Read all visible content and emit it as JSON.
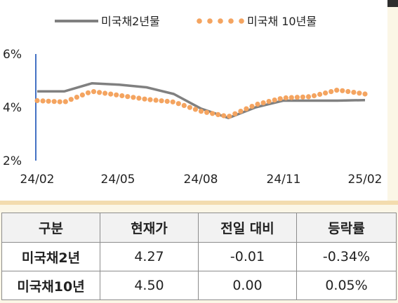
{
  "chart_data": {
    "type": "line",
    "title": "",
    "xlabel": "",
    "ylabel": "",
    "x_tick_labels": [
      "24/02",
      "24/05",
      "24/08",
      "24/11",
      "25/02"
    ],
    "y_tick_labels": [
      "2%",
      "4%",
      "6%"
    ],
    "ylim": [
      2,
      6
    ],
    "y_ticks": [
      2,
      4,
      6
    ],
    "grid": false,
    "legend_position": "top",
    "series": [
      {
        "name": "미국채2년물",
        "style": "solid",
        "color": "#808080",
        "x": [
          "24/02",
          "24/03",
          "24/04",
          "24/05",
          "24/06",
          "24/07",
          "24/08",
          "24/09",
          "24/10",
          "24/11",
          "24/12",
          "25/01",
          "25/02"
        ],
        "values": [
          4.6,
          4.6,
          4.9,
          4.85,
          4.75,
          4.5,
          3.95,
          3.6,
          4.0,
          4.25,
          4.25,
          4.25,
          4.27
        ]
      },
      {
        "name": "미국채 10년물",
        "style": "dotted",
        "color": "#f4a460",
        "x": [
          "24/02",
          "24/03",
          "24/04",
          "24/05",
          "24/06",
          "24/07",
          "24/08",
          "24/09",
          "24/10",
          "24/11",
          "24/12",
          "25/01",
          "25/02"
        ],
        "values": [
          4.25,
          4.2,
          4.6,
          4.45,
          4.3,
          4.2,
          3.85,
          3.65,
          4.1,
          4.35,
          4.4,
          4.65,
          4.5
        ]
      }
    ]
  },
  "table": {
    "headers": [
      "구분",
      "현재가",
      "전일 대비",
      "등락률"
    ],
    "rows": [
      {
        "label": "미국채2년",
        "price": "4.27",
        "change": "-0.01",
        "pct": "-0.34%"
      },
      {
        "label": "미국채10년",
        "price": "4.50",
        "change": "0.00",
        "pct": "0.05%"
      }
    ]
  }
}
